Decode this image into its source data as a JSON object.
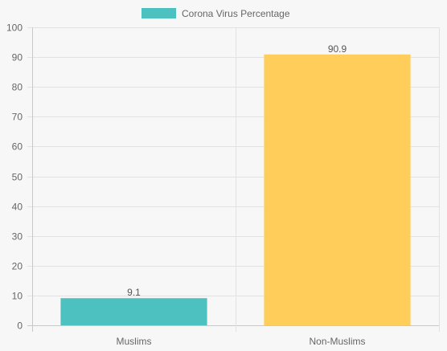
{
  "chart_data": {
    "type": "bar",
    "categories": [
      "Muslims",
      "Non-Muslims"
    ],
    "series": [
      {
        "name": "Corona Virus Percentage",
        "values": [
          9.1,
          90.9
        ],
        "colors": [
          "#4dc0c0",
          "#ffcd5a"
        ]
      }
    ],
    "data_labels": [
      "9.1",
      "90.9"
    ],
    "ylim": [
      0,
      100
    ],
    "yticks": [
      0,
      10,
      20,
      30,
      40,
      50,
      60,
      70,
      80,
      90,
      100
    ],
    "grid": true,
    "legend": "top-center",
    "legend_color": "#4dc0c0"
  }
}
